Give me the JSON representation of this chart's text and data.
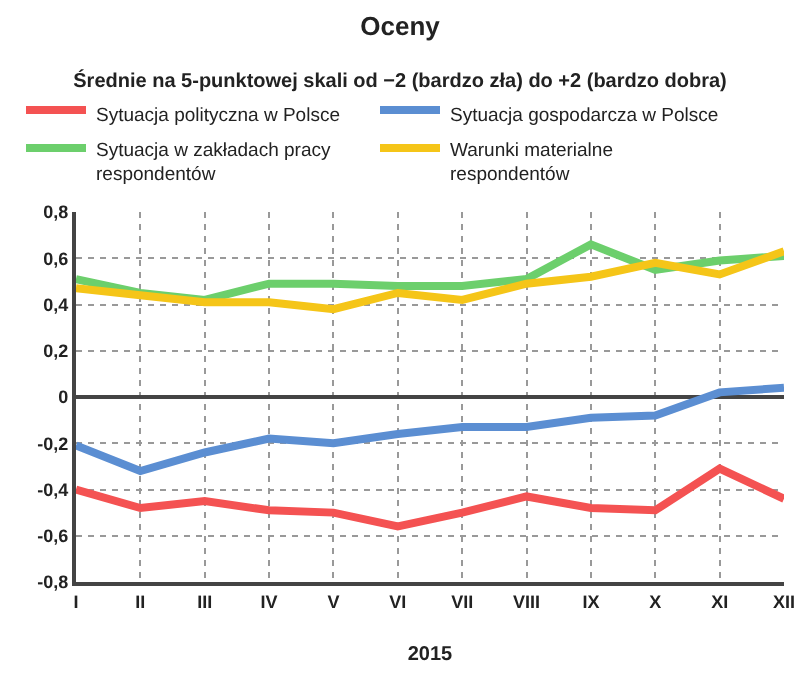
{
  "chart_data": {
    "type": "line",
    "title": "Oceny",
    "subtitle": "Średnie na 5-punktowej skali od −2 (bardzo zła) do +2 (bardzo dobra)",
    "xlabel": "2015",
    "categories": [
      "I",
      "II",
      "III",
      "IV",
      "V",
      "VI",
      "VII",
      "VIII",
      "IX",
      "X",
      "XI",
      "XII"
    ],
    "series": [
      {
        "name": "Sytuacja polityczna w Polsce",
        "color": "#f45252",
        "values": [
          -0.4,
          -0.48,
          -0.45,
          -0.49,
          -0.5,
          -0.56,
          -0.5,
          -0.43,
          -0.48,
          -0.49,
          -0.31,
          -0.44
        ]
      },
      {
        "name": "Sytuacja gospodarcza w Polsce",
        "color": "#5b8ed2",
        "values": [
          -0.21,
          -0.32,
          -0.24,
          -0.18,
          -0.2,
          -0.16,
          -0.13,
          -0.13,
          -0.09,
          -0.08,
          0.02,
          0.04
        ]
      },
      {
        "name": "Sytuacja w zakładach pracy respondentów",
        "color": "#6ccf6c",
        "values": [
          0.51,
          0.45,
          0.42,
          0.49,
          0.49,
          0.48,
          0.48,
          0.51,
          0.66,
          0.55,
          0.59,
          0.61
        ]
      },
      {
        "name": "Warunki materialne respondentów",
        "color": "#f5c518",
        "values": [
          0.47,
          0.44,
          0.41,
          0.41,
          0.38,
          0.45,
          0.42,
          0.49,
          0.52,
          0.58,
          0.53,
          0.63
        ]
      }
    ],
    "ylim": [
      -0.8,
      0.8
    ],
    "yticks": [
      {
        "value": -0.8,
        "label": "-0,8"
      },
      {
        "value": -0.6,
        "label": "-0,6"
      },
      {
        "value": -0.4,
        "label": "-0,4"
      },
      {
        "value": -0.2,
        "label": "-0,2"
      },
      0,
      {
        "value": 0.2,
        "label": "0,2"
      },
      {
        "value": 0.4,
        "label": "0,4"
      },
      {
        "value": 0.6,
        "label": "0,6"
      },
      {
        "value": 0.8,
        "label": "0,8"
      }
    ],
    "grid": true,
    "legend": "top",
    "marker": "none",
    "line_style": "solid"
  }
}
